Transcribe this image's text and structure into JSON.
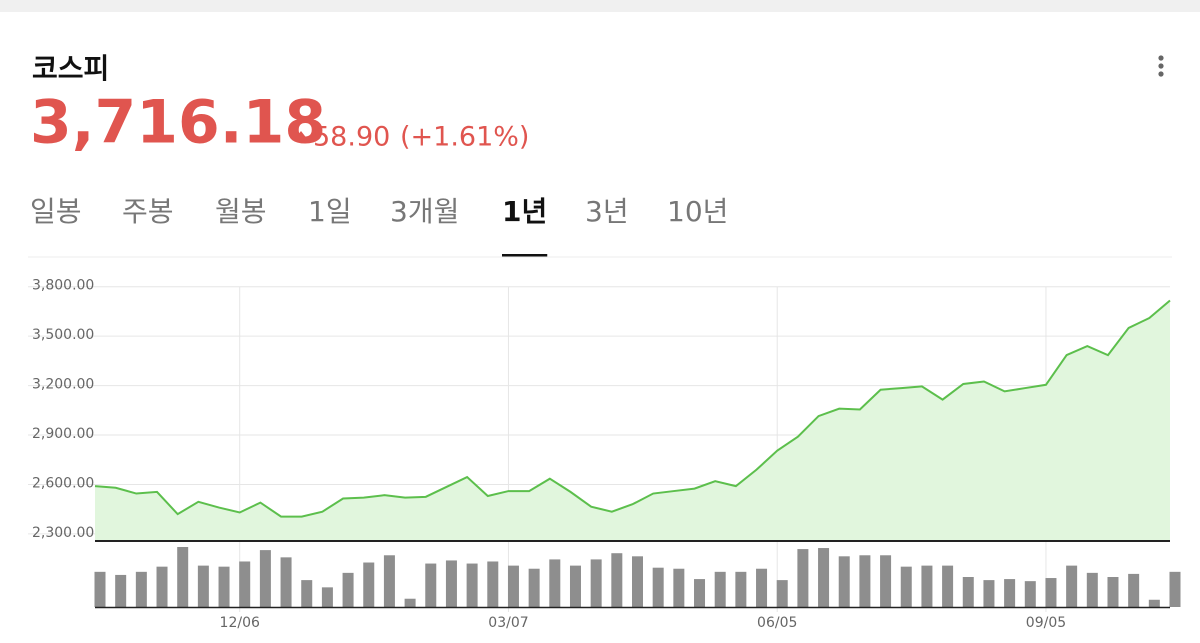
{
  "header": {
    "title": "코스피",
    "price": "3,716.18",
    "change": "58.90",
    "change_pct": "(+1.61%)"
  },
  "tabs": {
    "items": [
      "일봉",
      "주봉",
      "월봉",
      "1일",
      "3개월",
      "1년",
      "3년",
      "10년"
    ],
    "selected": 5
  },
  "chart_data": {
    "type": "line",
    "categories": [
      null,
      null,
      null,
      null,
      null,
      null,
      null,
      "12/06",
      null,
      null,
      null,
      null,
      null,
      null,
      null,
      null,
      null,
      null,
      null,
      null,
      "03/07",
      null,
      null,
      null,
      null,
      null,
      null,
      null,
      null,
      null,
      null,
      null,
      null,
      "06/05",
      null,
      null,
      null,
      null,
      null,
      null,
      null,
      null,
      null,
      null,
      null,
      null,
      "09/05",
      null,
      null,
      null,
      null,
      null,
      null
    ],
    "values": [
      2590,
      2580,
      2545,
      2555,
      2420,
      2495,
      2460,
      2430,
      2490,
      2405,
      2405,
      2435,
      2515,
      2520,
      2535,
      2520,
      2525,
      2585,
      2645,
      2530,
      2560,
      2560,
      2635,
      2555,
      2465,
      2435,
      2480,
      2545,
      2560,
      2575,
      2620,
      2590,
      2690,
      2805,
      2890,
      3015,
      3060,
      3055,
      3175,
      3185,
      3195,
      3115,
      3210,
      3225,
      3165,
      3185,
      3205,
      3385,
      3440,
      3385,
      3550,
      3610,
      3716.18
    ],
    "color": "#5cbf4c",
    "fill": "#e1f6dd",
    "ylim": [
      2257,
      3950
    ],
    "yticks": [
      {
        "value": 2300,
        "label": "2,300.00"
      },
      {
        "value": 2600,
        "label": "2,600.00"
      },
      {
        "value": 2900,
        "label": "2,900.00"
      },
      {
        "value": 3200,
        "label": "3,200.00"
      },
      {
        "value": 3500,
        "label": "3,500.00"
      },
      {
        "value": 3800,
        "label": "3,800.00"
      }
    ],
    "grid": true,
    "volume": {
      "type": "bar",
      "color": "#8e8e8e",
      "values": [
        34,
        31,
        34,
        39,
        58,
        40,
        39,
        44,
        55,
        48,
        26,
        19,
        33,
        43,
        50,
        8,
        42,
        45,
        42,
        44,
        40,
        37,
        46,
        40,
        46,
        52,
        49,
        38,
        37,
        27,
        34,
        34,
        37,
        26,
        56,
        57,
        49,
        50,
        50,
        39,
        40,
        40,
        29,
        26,
        27,
        25,
        28,
        40,
        33,
        29,
        32,
        7,
        34
      ]
    }
  }
}
